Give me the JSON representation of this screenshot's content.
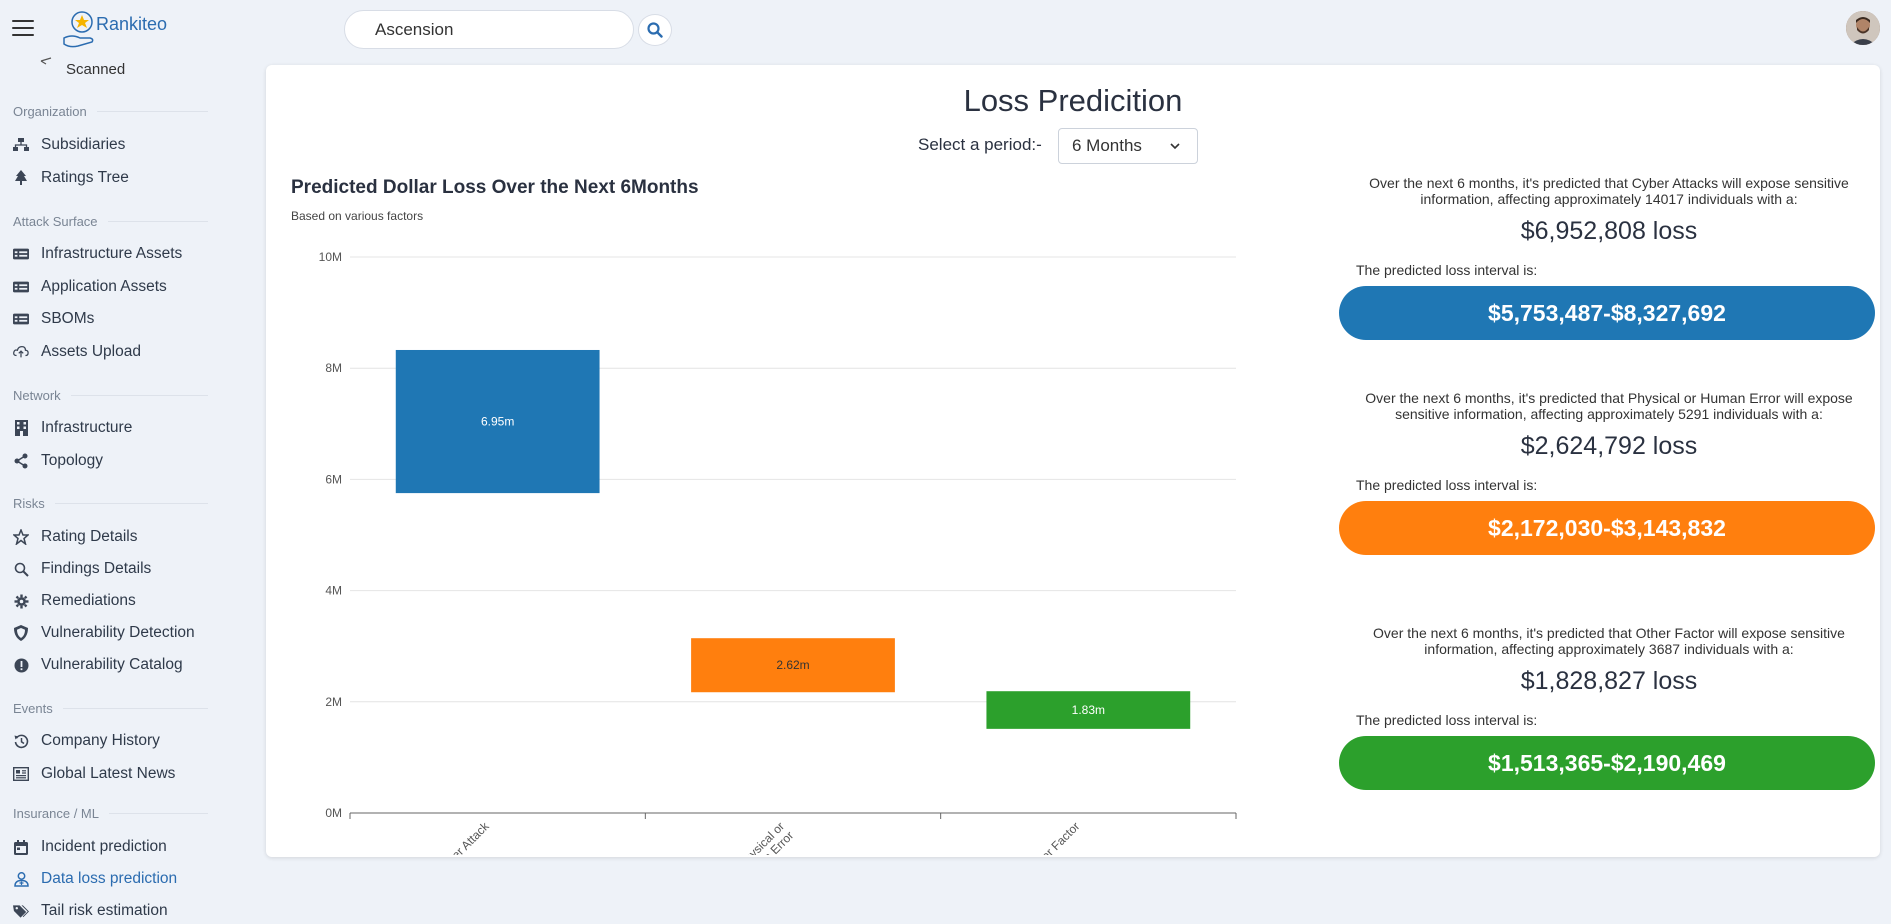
{
  "header": {
    "logo_text": "Rankiteo",
    "search_value": "Ascension"
  },
  "sidebar": {
    "partial_item": "Scanned",
    "sections": [
      {
        "title": "Organization",
        "items": [
          {
            "label": "Subsidiaries",
            "icon": "sitemap-icon"
          },
          {
            "label": "Ratings Tree",
            "icon": "tree-icon"
          }
        ]
      },
      {
        "title": "Attack Surface",
        "items": [
          {
            "label": "Infrastructure Assets",
            "icon": "list-card-icon"
          },
          {
            "label": "Application Assets",
            "icon": "list-card-icon"
          },
          {
            "label": "SBOMs",
            "icon": "list-card-icon"
          },
          {
            "label": "Assets Upload",
            "icon": "cloud-upload-icon"
          }
        ]
      },
      {
        "title": "Network",
        "items": [
          {
            "label": "Infrastructure",
            "icon": "building-icon"
          },
          {
            "label": "Topology",
            "icon": "share-nodes-icon"
          }
        ]
      },
      {
        "title": "Risks",
        "items": [
          {
            "label": "Rating Details",
            "icon": "star-icon"
          },
          {
            "label": "Findings Details",
            "icon": "magnifier-icon"
          },
          {
            "label": "Remediations",
            "icon": "gear-icon"
          },
          {
            "label": "Vulnerability Detection",
            "icon": "shield-icon"
          },
          {
            "label": "Vulnerability Catalog",
            "icon": "alert-circle-icon"
          }
        ]
      },
      {
        "title": "Events",
        "items": [
          {
            "label": "Company History",
            "icon": "history-icon"
          },
          {
            "label": "Global Latest News",
            "icon": "newspaper-icon"
          }
        ]
      },
      {
        "title": "Insurance / ML",
        "items": [
          {
            "label": "Incident prediction",
            "icon": "calendar-icon"
          },
          {
            "label": "Data loss prediction",
            "icon": "user-shield-icon",
            "active": true
          },
          {
            "label": "Tail risk estimation",
            "icon": "tags-icon"
          }
        ]
      }
    ]
  },
  "main": {
    "title": "Loss Predicition",
    "period_label": "Select a period:-",
    "period_value": "6 Months"
  },
  "chart_data": {
    "type": "bar",
    "title": "Predicted Dollar Loss Over the Next 6Months",
    "subtitle": "Based on various factors",
    "categories": [
      "Cyber Attack",
      "Physical or Human Error",
      "Other Factor"
    ],
    "category_lines": [
      [
        "Cyber Attack"
      ],
      [
        "Physical or",
        "Human Error"
      ],
      [
        "Other Factor"
      ]
    ],
    "ranges": [
      {
        "low": 5753487,
        "high": 8327692,
        "label": "6.95m",
        "color": "#1f77b4"
      },
      {
        "low": 2172030,
        "high": 3143832,
        "label": "2.62m",
        "color": "#ff7f0e"
      },
      {
        "low": 1513365,
        "high": 2190469,
        "label": "1.83m",
        "color": "#2ca02c"
      }
    ],
    "yticks": [
      "0M",
      "2M",
      "4M",
      "6M",
      "8M",
      "10M"
    ],
    "ylim": [
      0,
      10000000
    ],
    "grid": true
  },
  "predictions": [
    {
      "text": "Over the next 6 months, it's predicted that Cyber Attacks will expose sensitive information, affecting approximately 14017 individuals with a:",
      "loss": "$6,952,808 loss",
      "interval_label": "The predicted loss interval is:",
      "interval": "$5,753,487-$8,327,692",
      "color": "#1f77b4"
    },
    {
      "text": "Over the next 6 months, it's predicted that Physical or Human Error will expose sensitive information, affecting approximately 5291 individuals with a:",
      "loss": "$2,624,792 loss",
      "interval_label": "The predicted loss interval is:",
      "interval": "$2,172,030-$3,143,832",
      "color": "#ff7f0e"
    },
    {
      "text": "Over the next 6 months, it's predicted that Other Factor will expose sensitive information, affecting approximately 3687 individuals with a:",
      "loss": "$1,828,827 loss",
      "interval_label": "The predicted loss interval is:",
      "interval": "$1,513,365-$2,190,469",
      "color": "#2ca02c"
    }
  ]
}
